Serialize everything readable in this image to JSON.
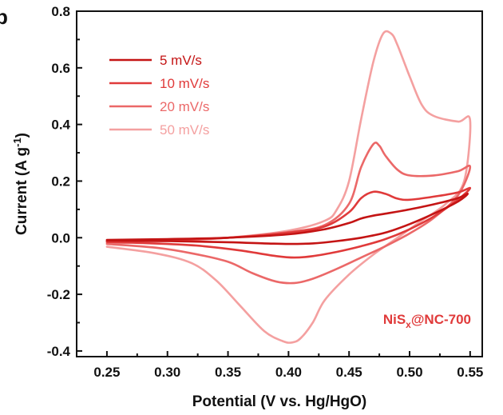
{
  "chart_data": {
    "type": "line",
    "panel_letter": "b",
    "xlabel": "Potential (V vs. Hg/HgO)",
    "ylabel": {
      "main": "Current (A g",
      "sup": "-1",
      "end": ")"
    },
    "xlim": [
      0.225,
      0.56
    ],
    "ylim": [
      -0.42,
      0.8
    ],
    "xticks": [
      0.25,
      0.3,
      0.35,
      0.4,
      0.45,
      0.5,
      0.55
    ],
    "xtick_labels": [
      "0.25",
      "0.30",
      "0.35",
      "0.40",
      "0.45",
      "0.50",
      "0.55"
    ],
    "yticks": [
      -0.4,
      -0.2,
      0.0,
      0.2,
      0.4,
      0.6,
      0.8
    ],
    "ytick_labels": [
      "-0.4",
      "-0.2",
      "0.0",
      "0.2",
      "0.4",
      "0.6",
      "0.8"
    ],
    "grid": false,
    "legend_position": "top-left",
    "annotation": {
      "pre": "NiS",
      "sub": "x",
      "post": "@NC-700",
      "color": "#e03a3a"
    },
    "series": [
      {
        "name": "5 mV/s",
        "color": "#c41414",
        "anodic": [
          [
            0.25,
            -0.008
          ],
          [
            0.3,
            -0.005
          ],
          [
            0.35,
            0.0
          ],
          [
            0.4,
            0.012
          ],
          [
            0.43,
            0.03
          ],
          [
            0.45,
            0.052
          ],
          [
            0.46,
            0.068
          ],
          [
            0.47,
            0.078
          ],
          [
            0.48,
            0.085
          ],
          [
            0.5,
            0.1
          ],
          [
            0.52,
            0.118
          ],
          [
            0.54,
            0.14
          ],
          [
            0.548,
            0.155
          ]
        ],
        "cathodic": [
          [
            0.548,
            0.155
          ],
          [
            0.54,
            0.128
          ],
          [
            0.52,
            0.085
          ],
          [
            0.5,
            0.048
          ],
          [
            0.48,
            0.018
          ],
          [
            0.46,
            0.0
          ],
          [
            0.44,
            -0.012
          ],
          [
            0.42,
            -0.02
          ],
          [
            0.4,
            -0.022
          ],
          [
            0.38,
            -0.02
          ],
          [
            0.35,
            -0.016
          ],
          [
            0.3,
            -0.012
          ],
          [
            0.25,
            -0.01
          ]
        ]
      },
      {
        "name": "10 mV/s",
        "color": "#e03a3a",
        "anodic": [
          [
            0.25,
            -0.012
          ],
          [
            0.3,
            -0.008
          ],
          [
            0.35,
            0.0
          ],
          [
            0.4,
            0.018
          ],
          [
            0.43,
            0.04
          ],
          [
            0.45,
            0.09
          ],
          [
            0.46,
            0.14
          ],
          [
            0.47,
            0.162
          ],
          [
            0.48,
            0.155
          ],
          [
            0.49,
            0.138
          ],
          [
            0.5,
            0.134
          ],
          [
            0.52,
            0.145
          ],
          [
            0.54,
            0.16
          ],
          [
            0.55,
            0.175
          ]
        ],
        "cathodic": [
          [
            0.55,
            0.175
          ],
          [
            0.54,
            0.135
          ],
          [
            0.52,
            0.075
          ],
          [
            0.5,
            0.03
          ],
          [
            0.48,
            -0.005
          ],
          [
            0.46,
            -0.03
          ],
          [
            0.44,
            -0.05
          ],
          [
            0.42,
            -0.065
          ],
          [
            0.405,
            -0.07
          ],
          [
            0.39,
            -0.065
          ],
          [
            0.36,
            -0.045
          ],
          [
            0.33,
            -0.03
          ],
          [
            0.3,
            -0.022
          ],
          [
            0.25,
            -0.015
          ]
        ]
      },
      {
        "name": "20 mV/s",
        "color": "#eb6868",
        "anodic": [
          [
            0.25,
            -0.015
          ],
          [
            0.3,
            -0.01
          ],
          [
            0.35,
            0.0
          ],
          [
            0.4,
            0.02
          ],
          [
            0.43,
            0.045
          ],
          [
            0.45,
            0.12
          ],
          [
            0.46,
            0.25
          ],
          [
            0.47,
            0.33
          ],
          [
            0.475,
            0.325
          ],
          [
            0.48,
            0.29
          ],
          [
            0.49,
            0.24
          ],
          [
            0.5,
            0.22
          ],
          [
            0.52,
            0.22
          ],
          [
            0.54,
            0.235
          ],
          [
            0.55,
            0.25
          ]
        ],
        "cathodic": [
          [
            0.55,
            0.25
          ],
          [
            0.54,
            0.15
          ],
          [
            0.52,
            0.07
          ],
          [
            0.5,
            0.015
          ],
          [
            0.48,
            -0.03
          ],
          [
            0.46,
            -0.07
          ],
          [
            0.44,
            -0.11
          ],
          [
            0.42,
            -0.145
          ],
          [
            0.405,
            -0.16
          ],
          [
            0.39,
            -0.155
          ],
          [
            0.37,
            -0.125
          ],
          [
            0.35,
            -0.085
          ],
          [
            0.32,
            -0.055
          ],
          [
            0.29,
            -0.035
          ],
          [
            0.25,
            -0.022
          ]
        ]
      },
      {
        "name": "50 mV/s",
        "color": "#f4a0a0",
        "anodic": [
          [
            0.25,
            -0.02
          ],
          [
            0.3,
            -0.012
          ],
          [
            0.35,
            0.0
          ],
          [
            0.4,
            0.025
          ],
          [
            0.43,
            0.06
          ],
          [
            0.44,
            0.1
          ],
          [
            0.45,
            0.2
          ],
          [
            0.46,
            0.42
          ],
          [
            0.47,
            0.62
          ],
          [
            0.478,
            0.72
          ],
          [
            0.485,
            0.72
          ],
          [
            0.49,
            0.68
          ],
          [
            0.5,
            0.57
          ],
          [
            0.51,
            0.47
          ],
          [
            0.52,
            0.43
          ],
          [
            0.54,
            0.41
          ],
          [
            0.55,
            0.415
          ]
        ],
        "cathodic": [
          [
            0.55,
            0.415
          ],
          [
            0.545,
            0.2
          ],
          [
            0.53,
            0.12
          ],
          [
            0.51,
            0.06
          ],
          [
            0.49,
            0.0
          ],
          [
            0.47,
            -0.06
          ],
          [
            0.45,
            -0.13
          ],
          [
            0.43,
            -0.22
          ],
          [
            0.42,
            -0.3
          ],
          [
            0.41,
            -0.355
          ],
          [
            0.403,
            -0.37
          ],
          [
            0.395,
            -0.365
          ],
          [
            0.38,
            -0.33
          ],
          [
            0.36,
            -0.24
          ],
          [
            0.34,
            -0.15
          ],
          [
            0.32,
            -0.09
          ],
          [
            0.29,
            -0.055
          ],
          [
            0.25,
            -0.032
          ]
        ]
      }
    ]
  }
}
